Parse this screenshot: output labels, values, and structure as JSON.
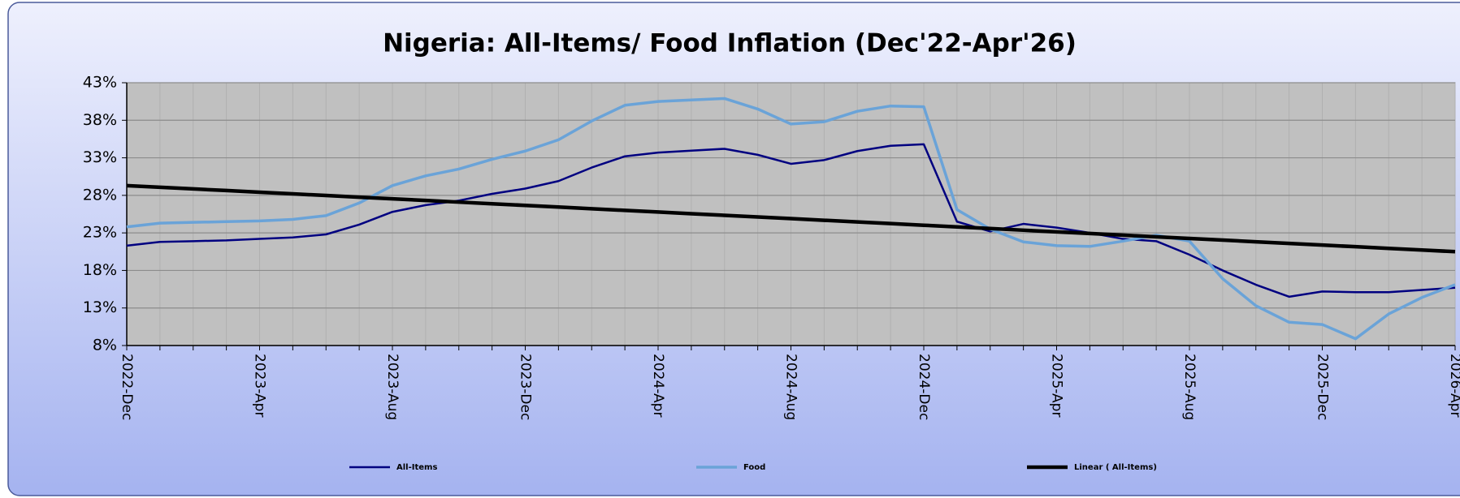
{
  "chart_data": {
    "type": "line",
    "title": "Nigeria: All-Items/ Food Inflation (Dec'22-Apr'26)",
    "categories": [
      "2022-Dec",
      null,
      null,
      null,
      "2023-Apr",
      null,
      null,
      null,
      "2023-Aug",
      null,
      null,
      null,
      "2023-Dec",
      null,
      null,
      null,
      "2024-Apr",
      null,
      null,
      null,
      "2024-Aug",
      null,
      null,
      null,
      "2024-Dec",
      null,
      null,
      null,
      "2025-Apr",
      null,
      null,
      null,
      "2025-Aug",
      null,
      null,
      null,
      "2025-Dec",
      null,
      null,
      null,
      "2026-Apr"
    ],
    "series": [
      {
        "name": "All-Items",
        "color": "#000080",
        "width": 2.5,
        "values": [
          21.3,
          21.8,
          21.9,
          22.0,
          22.2,
          22.4,
          22.8,
          24.1,
          25.8,
          26.7,
          27.3,
          28.2,
          28.9,
          29.9,
          31.7,
          33.2,
          33.7,
          33.95,
          34.2,
          33.4,
          32.2,
          32.7,
          33.9,
          34.6,
          34.8,
          24.5,
          23.2,
          24.2,
          23.7,
          23.0,
          22.2,
          21.9,
          20.1,
          18.0,
          16.1,
          14.5,
          15.2,
          15.1,
          15.1,
          15.4,
          15.7
        ]
      },
      {
        "name": "Food",
        "color": "#6aa3d8",
        "width": 3.5,
        "values": [
          23.8,
          24.3,
          24.4,
          24.5,
          24.6,
          24.8,
          25.3,
          26.98,
          29.3,
          30.6,
          31.5,
          32.8,
          33.9,
          35.4,
          37.9,
          40.0,
          40.5,
          40.7,
          40.9,
          39.5,
          37.5,
          37.8,
          39.2,
          39.9,
          39.8,
          26.1,
          23.5,
          21.8,
          21.3,
          21.2,
          21.9,
          22.7,
          21.9,
          16.9,
          13.3,
          11.1,
          10.8,
          8.9,
          12.2,
          14.4,
          16.1
        ]
      },
      {
        "name": "Linear ( All-Items)",
        "color": "#000000",
        "width": 4.5,
        "values": [
          29.3,
          29.08,
          28.86,
          28.64,
          28.42,
          28.2,
          27.98,
          27.76,
          27.54,
          27.32,
          27.1,
          26.88,
          26.66,
          26.44,
          26.22,
          26.0,
          25.78,
          25.56,
          25.34,
          25.12,
          24.9,
          24.68,
          24.46,
          24.24,
          24.02,
          23.8,
          23.58,
          23.36,
          23.14,
          22.92,
          22.7,
          22.48,
          22.26,
          22.04,
          21.82,
          21.6,
          21.38,
          21.16,
          20.94,
          20.72,
          20.5
        ]
      }
    ],
    "ylim": [
      8,
      43
    ],
    "yticks": [
      {
        "value": 8,
        "label": "8%"
      },
      {
        "value": 13,
        "label": "13%"
      },
      {
        "value": 18,
        "label": "18%"
      },
      {
        "value": 23,
        "label": "23%"
      },
      {
        "value": 28,
        "label": "28%"
      },
      {
        "value": 33,
        "label": "33%"
      },
      {
        "value": 38,
        "label": "38%"
      },
      {
        "value": 43,
        "label": "43%"
      }
    ],
    "grid": true,
    "legend": "bottom"
  }
}
